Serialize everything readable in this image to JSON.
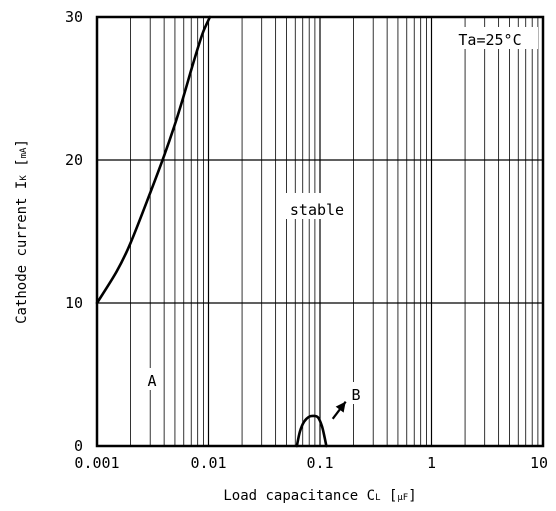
{
  "chart_data": {
    "type": "line",
    "x_scale": "log",
    "xlim": [
      0.001,
      10
    ],
    "ylim": [
      0,
      30
    ],
    "grid": true,
    "xlabel": "Load capacitance CL",
    "xlabel_prefix": "Load capacitance C",
    "xlabel_subscript": "L",
    "xlabel_unit": "μF",
    "ylabel": "Cathode current IK",
    "ylabel_prefix": "Cathode current I",
    "ylabel_subscript": "K",
    "ylabel_unit": "mA",
    "x_ticks": [
      {
        "value": 0.001,
        "label": "0.001"
      },
      {
        "value": 0.01,
        "label": "0.01"
      },
      {
        "value": 0.1,
        "label": "0.1"
      },
      {
        "value": 1,
        "label": "1"
      },
      {
        "value": 10,
        "label": "10"
      }
    ],
    "y_ticks": [
      {
        "value": 0,
        "label": "0"
      },
      {
        "value": 10,
        "label": "10"
      },
      {
        "value": 20,
        "label": "20"
      },
      {
        "value": 30,
        "label": "30"
      }
    ],
    "condition_label": "Ta=25°C",
    "region_labels": {
      "stable": "stable",
      "A": "A",
      "B": "B"
    },
    "series": [
      {
        "x": [
          0.001,
          0.0015,
          0.002,
          0.003,
          0.004,
          0.005,
          0.006,
          0.007,
          0.008,
          0.009,
          0.0103
        ],
        "y": [
          10,
          12.2,
          14.2,
          17.7,
          20.3,
          22.5,
          24.5,
          26.3,
          27.8,
          29.0,
          30
        ]
      },
      {
        "x": [
          0.062,
          0.066,
          0.072,
          0.08,
          0.088,
          0.096,
          0.104,
          0.11,
          0.114
        ],
        "y": [
          0,
          1.0,
          1.7,
          2.05,
          2.1,
          2.0,
          1.4,
          0.6,
          0
        ]
      }
    ],
    "arrow": {
      "from": [
        0.13,
        1.9
      ],
      "to": [
        0.17,
        3.1
      ]
    }
  }
}
